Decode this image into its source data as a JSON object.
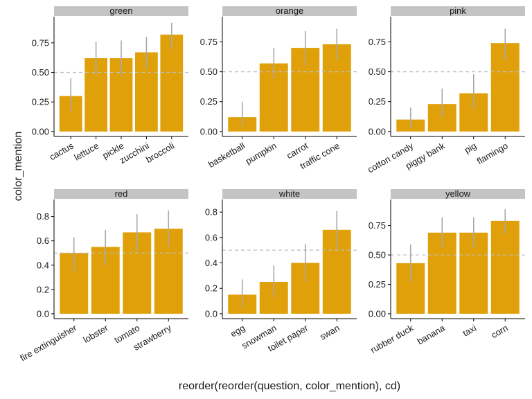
{
  "chart_data": {
    "type": "bar",
    "xlabel": "reorder(reorder(question, color_mention), cd)",
    "ylabel": "color_mention",
    "reference_line": 0.5,
    "colors": {
      "bar": "#E0A00A",
      "errorbar": "#A9A9A9",
      "strip": "#C4C4C4",
      "refline": "#BDBDBD",
      "axis": "#000000"
    },
    "panels": [
      {
        "title": "green",
        "ylim": [
          0,
          0.93
        ],
        "yticks": [
          0.0,
          0.25,
          0.5,
          0.75
        ],
        "ytick_labels": [
          "0.00",
          "0.25",
          "0.50",
          "0.75"
        ],
        "categories": [
          "cactus",
          "lettuce",
          "pickle",
          "zucchini",
          "broccoli"
        ],
        "values": [
          0.3,
          0.62,
          0.62,
          0.67,
          0.82
        ],
        "lower": [
          0.17,
          0.47,
          0.47,
          0.53,
          0.7
        ],
        "upper": [
          0.45,
          0.76,
          0.77,
          0.8,
          0.92
        ]
      },
      {
        "title": "orange",
        "ylim": [
          0,
          0.92
        ],
        "yticks": [
          0.0,
          0.25,
          0.5,
          0.75
        ],
        "ytick_labels": [
          "0.00",
          "0.25",
          "0.50",
          "0.75"
        ],
        "categories": [
          "basketball",
          "pumpkin",
          "carrot",
          "traffic cone"
        ],
        "values": [
          0.12,
          0.57,
          0.7,
          0.73
        ],
        "lower": [
          0.04,
          0.44,
          0.55,
          0.6
        ],
        "upper": [
          0.25,
          0.7,
          0.84,
          0.86
        ]
      },
      {
        "title": "pink",
        "ylim": [
          0,
          0.92
        ],
        "yticks": [
          0.0,
          0.25,
          0.5,
          0.75
        ],
        "ytick_labels": [
          "0.00",
          "0.25",
          "0.50",
          "0.75"
        ],
        "categories": [
          "cotton candy",
          "piggy bank",
          "pig",
          "flamingo"
        ],
        "values": [
          0.1,
          0.23,
          0.32,
          0.74
        ],
        "lower": [
          0.03,
          0.12,
          0.19,
          0.6
        ],
        "upper": [
          0.2,
          0.36,
          0.48,
          0.86
        ]
      },
      {
        "title": "red",
        "ylim": [
          0,
          0.9
        ],
        "yticks": [
          0.0,
          0.2,
          0.4,
          0.6,
          0.8
        ],
        "ytick_labels": [
          "0.0",
          "0.2",
          "0.4",
          "0.6",
          "0.8"
        ],
        "categories": [
          "fire extinguisher",
          "lobster",
          "tomato",
          "strawberry"
        ],
        "values": [
          0.5,
          0.55,
          0.67,
          0.7
        ],
        "lower": [
          0.35,
          0.4,
          0.51,
          0.55
        ],
        "upper": [
          0.63,
          0.69,
          0.82,
          0.85
        ]
      },
      {
        "title": "white",
        "ylim": [
          0,
          0.86
        ],
        "yticks": [
          0.0,
          0.2,
          0.4,
          0.6,
          0.8
        ],
        "ytick_labels": [
          "0.0",
          "0.2",
          "0.4",
          "0.6",
          "0.8"
        ],
        "categories": [
          "egg",
          "snowman",
          "toilet paper",
          "swan"
        ],
        "values": [
          0.15,
          0.25,
          0.4,
          0.66
        ],
        "lower": [
          0.05,
          0.13,
          0.25,
          0.5
        ],
        "upper": [
          0.27,
          0.38,
          0.55,
          0.81
        ]
      },
      {
        "title": "yellow",
        "ylim": [
          0,
          0.93
        ],
        "yticks": [
          0.0,
          0.25,
          0.5,
          0.75
        ],
        "ytick_labels": [
          "0.00",
          "0.25",
          "0.50",
          "0.75"
        ],
        "categories": [
          "rubber duck",
          "banana",
          "taxi",
          "corn"
        ],
        "values": [
          0.43,
          0.69,
          0.69,
          0.79
        ],
        "lower": [
          0.27,
          0.56,
          0.56,
          0.68
        ],
        "upper": [
          0.59,
          0.82,
          0.82,
          0.89
        ]
      }
    ]
  }
}
